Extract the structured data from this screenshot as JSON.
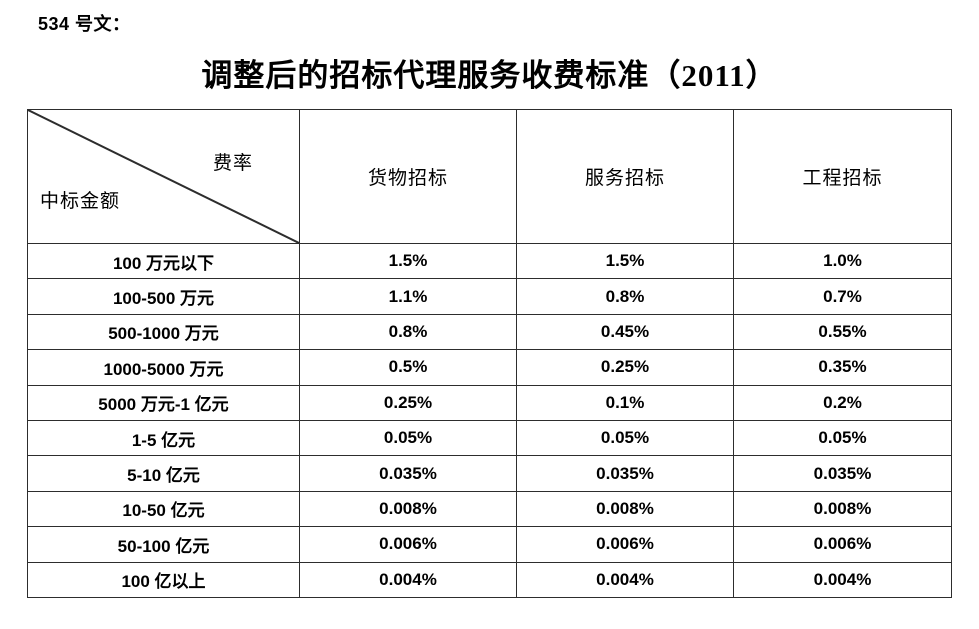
{
  "page": {
    "doc_ref": "534 号文：",
    "title": "调整后的招标代理服务收费标准（2011）"
  },
  "table": {
    "corner": {
      "top_right": "费率",
      "bottom_left": "中标金额"
    },
    "columns": [
      "货物招标",
      "服务招标",
      "工程招标"
    ],
    "rows": [
      {
        "label": "100 万元以下",
        "values": [
          "1.5%",
          "1.5%",
          "1.0%"
        ]
      },
      {
        "label": "100-500 万元",
        "values": [
          "1.1%",
          "0.8%",
          "0.7%"
        ]
      },
      {
        "label": "500-1000 万元",
        "values": [
          "0.8%",
          "0.45%",
          "0.55%"
        ]
      },
      {
        "label": "1000-5000 万元",
        "values": [
          "0.5%",
          "0.25%",
          "0.35%"
        ]
      },
      {
        "label": "5000 万元-1 亿元",
        "values": [
          "0.25%",
          "0.1%",
          "0.2%"
        ]
      },
      {
        "label": "1-5 亿元",
        "values": [
          "0.05%",
          "0.05%",
          "0.05%"
        ]
      },
      {
        "label": "5-10 亿元",
        "values": [
          "0.035%",
          "0.035%",
          "0.035%"
        ]
      },
      {
        "label": "10-50 亿元",
        "values": [
          "0.008%",
          "0.008%",
          "0.008%"
        ]
      },
      {
        "label": "50-100 亿元",
        "values": [
          "0.006%",
          "0.006%",
          "0.006%"
        ]
      },
      {
        "label": "100 亿以上",
        "values": [
          "0.004%",
          "0.004%",
          "0.004%"
        ]
      }
    ]
  },
  "colors": {
    "background": "#ffffff",
    "text": "#000000",
    "border": "#2d2d2d"
  }
}
